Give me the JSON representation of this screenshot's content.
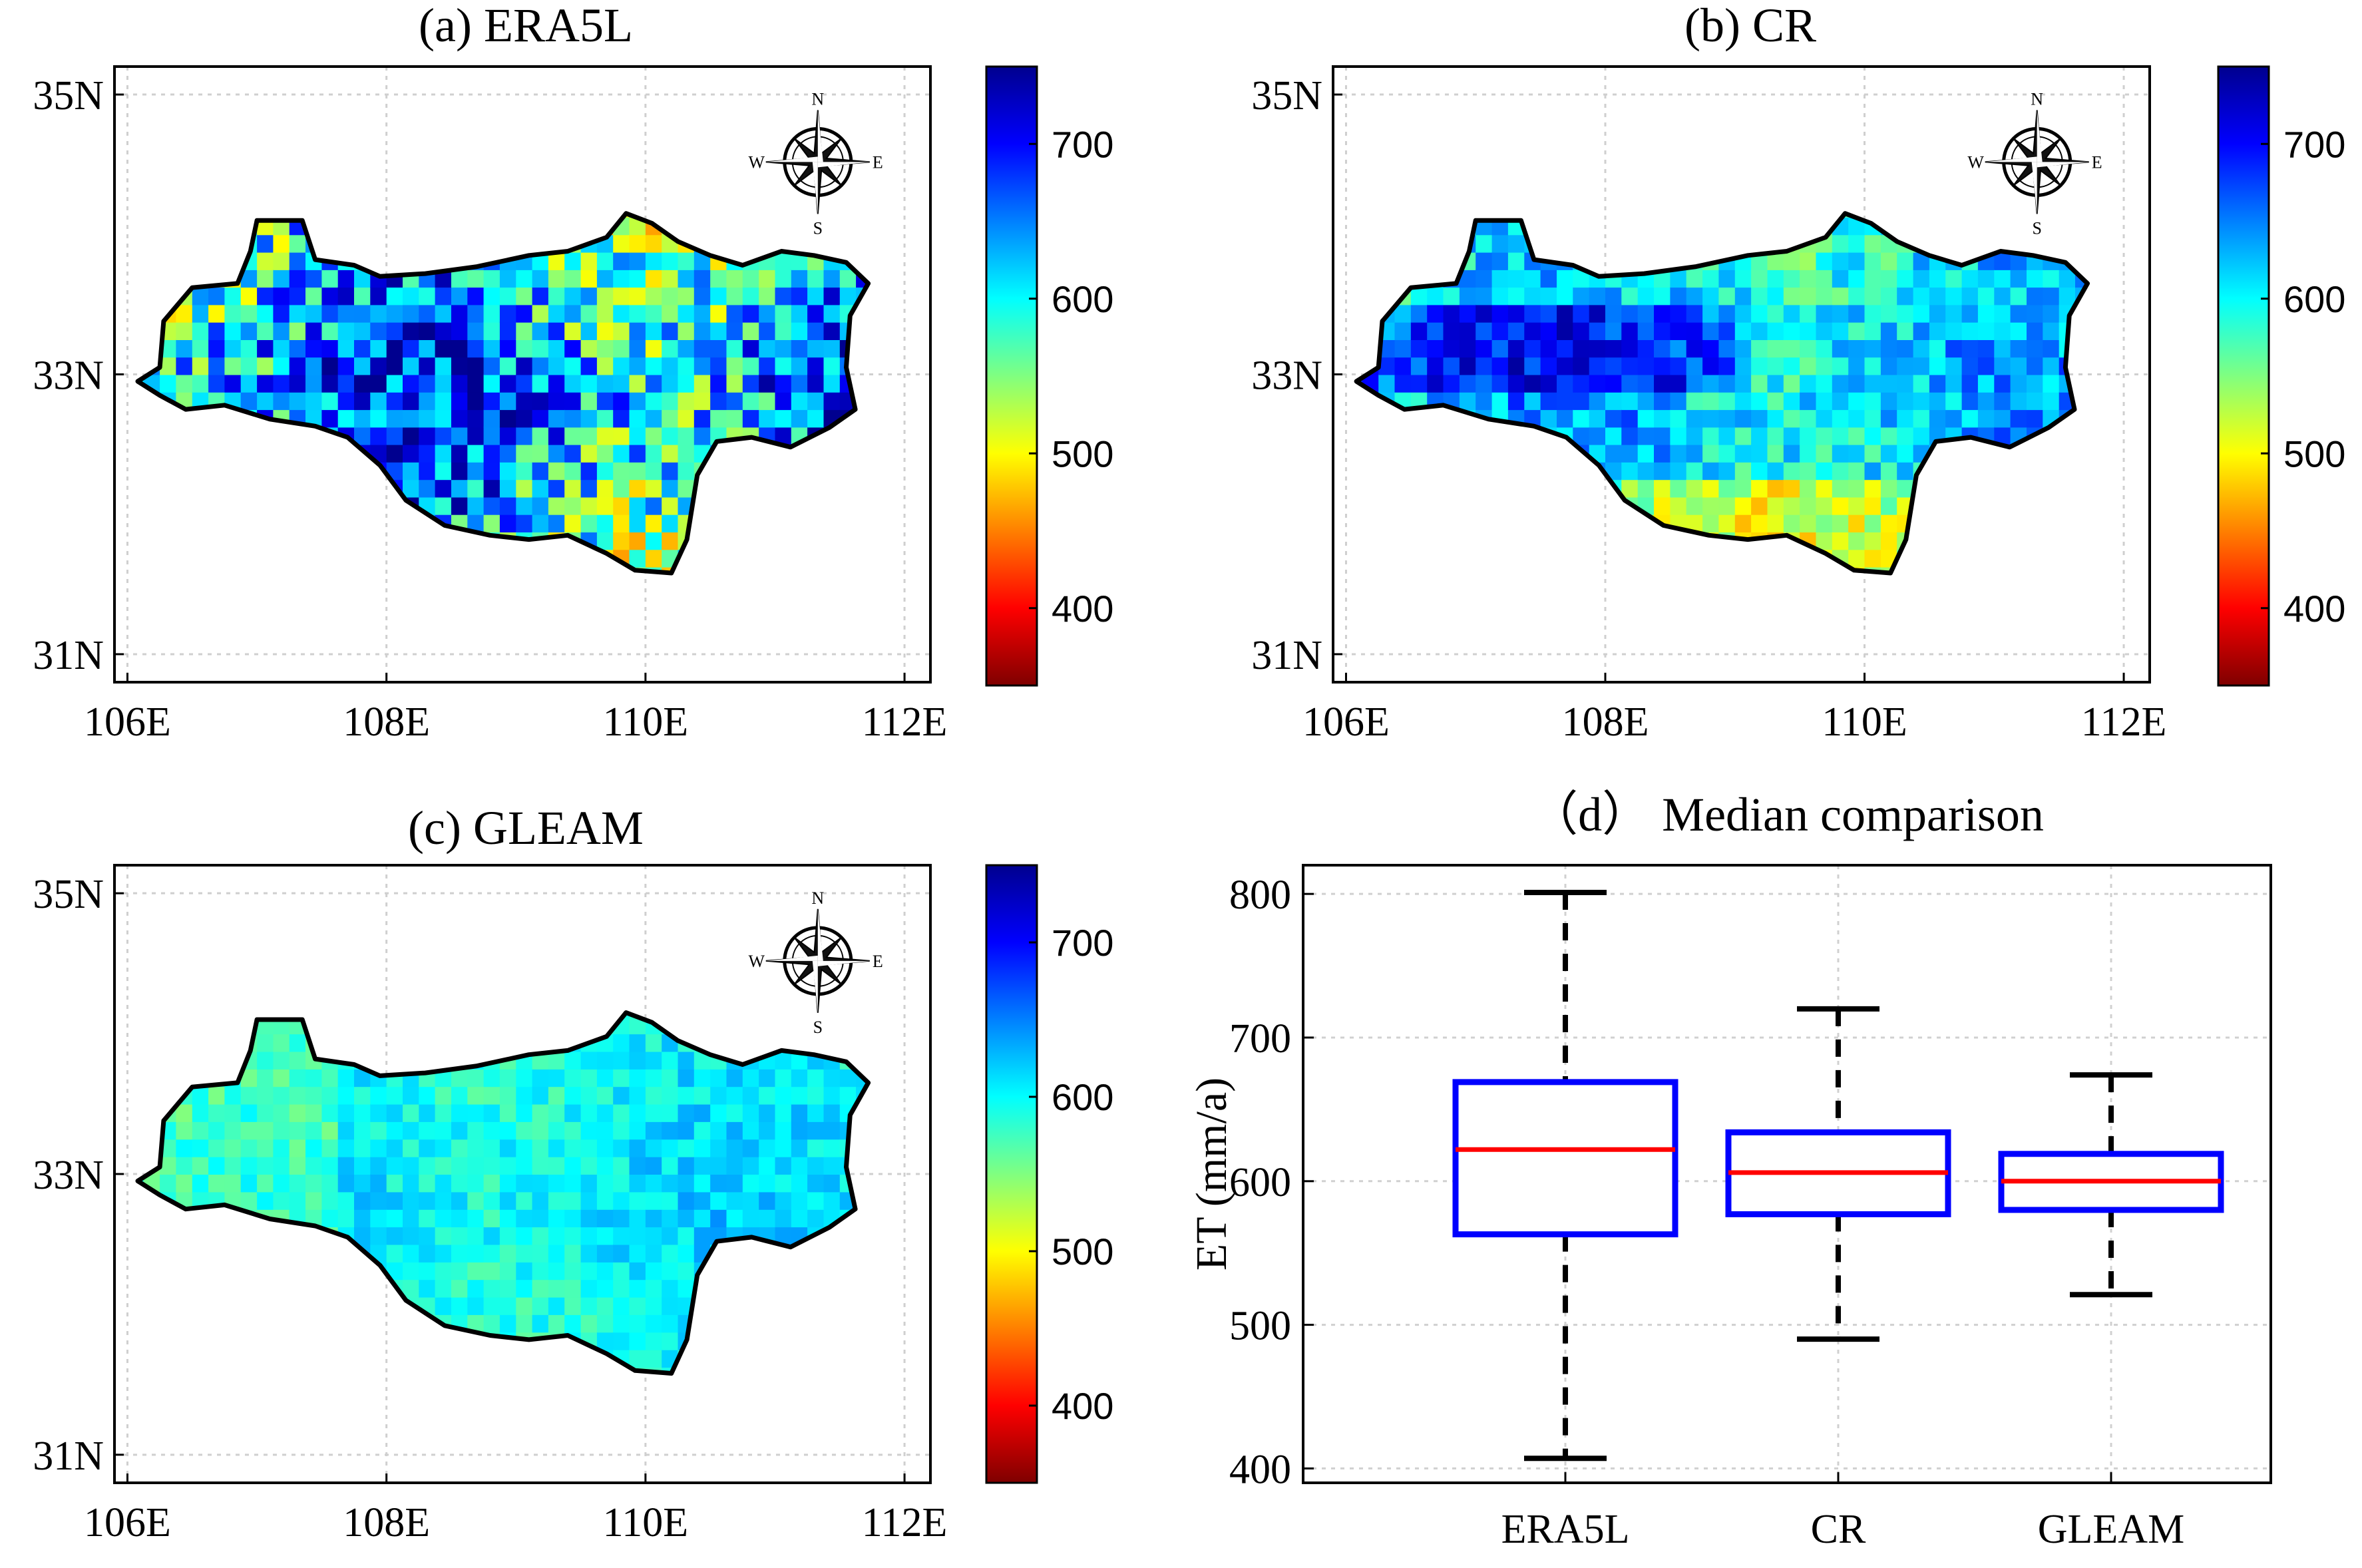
{
  "colors": {
    "box_edge": "#0000ff",
    "median": "#ff0000",
    "whisker": "#000000",
    "basin_border": "#000000",
    "colormap": [
      "#7f0000",
      "#ff0000",
      "#ff8000",
      "#ffff00",
      "#80ff80",
      "#00ffff",
      "#0080ff",
      "#0000ff",
      "#00008f"
    ]
  },
  "chart_data": [
    {
      "type": "heatmap",
      "id": "a",
      "title": "(a) ERA5L",
      "xticks": [
        "106E",
        "108E",
        "110E",
        "112E"
      ],
      "xtick_values": [
        106,
        108,
        110,
        112
      ],
      "yticks": [
        "35N",
        "33N",
        "31N"
      ],
      "ytick_values": [
        35,
        33,
        31
      ],
      "xlim": [
        105.9,
        112.2
      ],
      "ylim": [
        30.8,
        35.2
      ],
      "colorbar": {
        "ticks": [
          "700",
          "600",
          "500",
          "400"
        ],
        "tick_values": [
          700,
          600,
          500,
          400
        ],
        "range": [
          350,
          750
        ]
      },
      "compass": [
        "N",
        "E",
        "S",
        "W"
      ],
      "value_mean": 620,
      "value_spread": 95,
      "grid": true
    },
    {
      "type": "heatmap",
      "id": "b",
      "title": "(b) CR",
      "xticks": [
        "106E",
        "108E",
        "110E",
        "112E"
      ],
      "xtick_values": [
        106,
        108,
        110,
        112
      ],
      "yticks": [
        "35N",
        "33N",
        "31N"
      ],
      "ytick_values": [
        35,
        33,
        31
      ],
      "xlim": [
        105.9,
        112.2
      ],
      "ylim": [
        30.8,
        35.2
      ],
      "colorbar": {
        "ticks": [
          "700",
          "600",
          "500",
          "400"
        ],
        "tick_values": [
          700,
          600,
          500,
          400
        ],
        "range": [
          350,
          750
        ]
      },
      "compass": [
        "N",
        "E",
        "S",
        "W"
      ],
      "value_mean": 610,
      "value_spread": 45,
      "grid": true
    },
    {
      "type": "heatmap",
      "id": "c",
      "title": "(c) GLEAM",
      "xticks": [
        "106E",
        "108E",
        "110E",
        "112E"
      ],
      "xtick_values": [
        106,
        108,
        110,
        112
      ],
      "yticks": [
        "35N",
        "33N",
        "31N"
      ],
      "ytick_values": [
        35,
        33,
        31
      ],
      "xlim": [
        105.9,
        112.2
      ],
      "ylim": [
        30.8,
        35.2
      ],
      "colorbar": {
        "ticks": [
          "700",
          "600",
          "500",
          "400"
        ],
        "tick_values": [
          700,
          600,
          500,
          400
        ],
        "range": [
          350,
          750
        ]
      },
      "compass": [
        "N",
        "E",
        "S",
        "W"
      ],
      "value_mean": 600,
      "value_spread": 25,
      "grid": true
    },
    {
      "type": "box",
      "id": "d",
      "title": "（d） Median comparison",
      "ylabel": "ET (mm/a)",
      "ylim": [
        390,
        820
      ],
      "yticks": [
        "800",
        "700",
        "600",
        "500",
        "400"
      ],
      "ytick_values": [
        800,
        700,
        600,
        500,
        400
      ],
      "categories": [
        "ERA5L",
        "CR",
        "GLEAM"
      ],
      "boxes": [
        {
          "name": "ERA5L",
          "min": 407,
          "q1": 563,
          "median": 622,
          "q3": 669,
          "max": 801
        },
        {
          "name": "CR",
          "min": 490,
          "q1": 577,
          "median": 606,
          "q3": 634,
          "max": 720
        },
        {
          "name": "GLEAM",
          "min": 521,
          "q1": 580,
          "median": 600,
          "q3": 619,
          "max": 674
        }
      ]
    }
  ]
}
